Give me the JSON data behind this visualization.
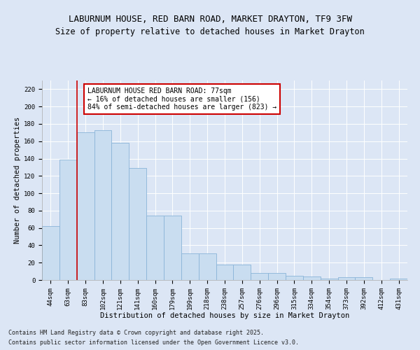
{
  "title_line1": "LABURNUM HOUSE, RED BARN ROAD, MARKET DRAYTON, TF9 3FW",
  "title_line2": "Size of property relative to detached houses in Market Drayton",
  "xlabel": "Distribution of detached houses by size in Market Drayton",
  "ylabel": "Number of detached properties",
  "categories": [
    "44sqm",
    "63sqm",
    "83sqm",
    "102sqm",
    "121sqm",
    "141sqm",
    "160sqm",
    "179sqm",
    "199sqm",
    "218sqm",
    "238sqm",
    "257sqm",
    "276sqm",
    "296sqm",
    "315sqm",
    "334sqm",
    "354sqm",
    "373sqm",
    "392sqm",
    "412sqm",
    "431sqm"
  ],
  "values": [
    62,
    139,
    170,
    173,
    158,
    129,
    74,
    74,
    31,
    31,
    18,
    18,
    8,
    8,
    5,
    4,
    2,
    3,
    3,
    0,
    2
  ],
  "bar_color": "#c9ddf0",
  "bar_edge_color": "#8ab4d8",
  "vline_color": "#cc0000",
  "vline_x_index": 1.5,
  "annotation_text": "LABURNUM HOUSE RED BARN ROAD: 77sqm\n← 16% of detached houses are smaller (156)\n84% of semi-detached houses are larger (823) →",
  "annotation_box_color": "#ffffff",
  "annotation_box_edge_color": "#cc0000",
  "ylim": [
    0,
    230
  ],
  "yticks": [
    0,
    20,
    40,
    60,
    80,
    100,
    120,
    140,
    160,
    180,
    200,
    220
  ],
  "background_color": "#dce6f5",
  "plot_background_color": "#dce6f5",
  "grid_color": "#ffffff",
  "footer_line1": "Contains HM Land Registry data © Crown copyright and database right 2025.",
  "footer_line2": "Contains public sector information licensed under the Open Government Licence v3.0.",
  "title_fontsize": 9,
  "subtitle_fontsize": 8.5,
  "axis_label_fontsize": 7.5,
  "tick_fontsize": 6.5,
  "annotation_fontsize": 7,
  "footer_fontsize": 6
}
